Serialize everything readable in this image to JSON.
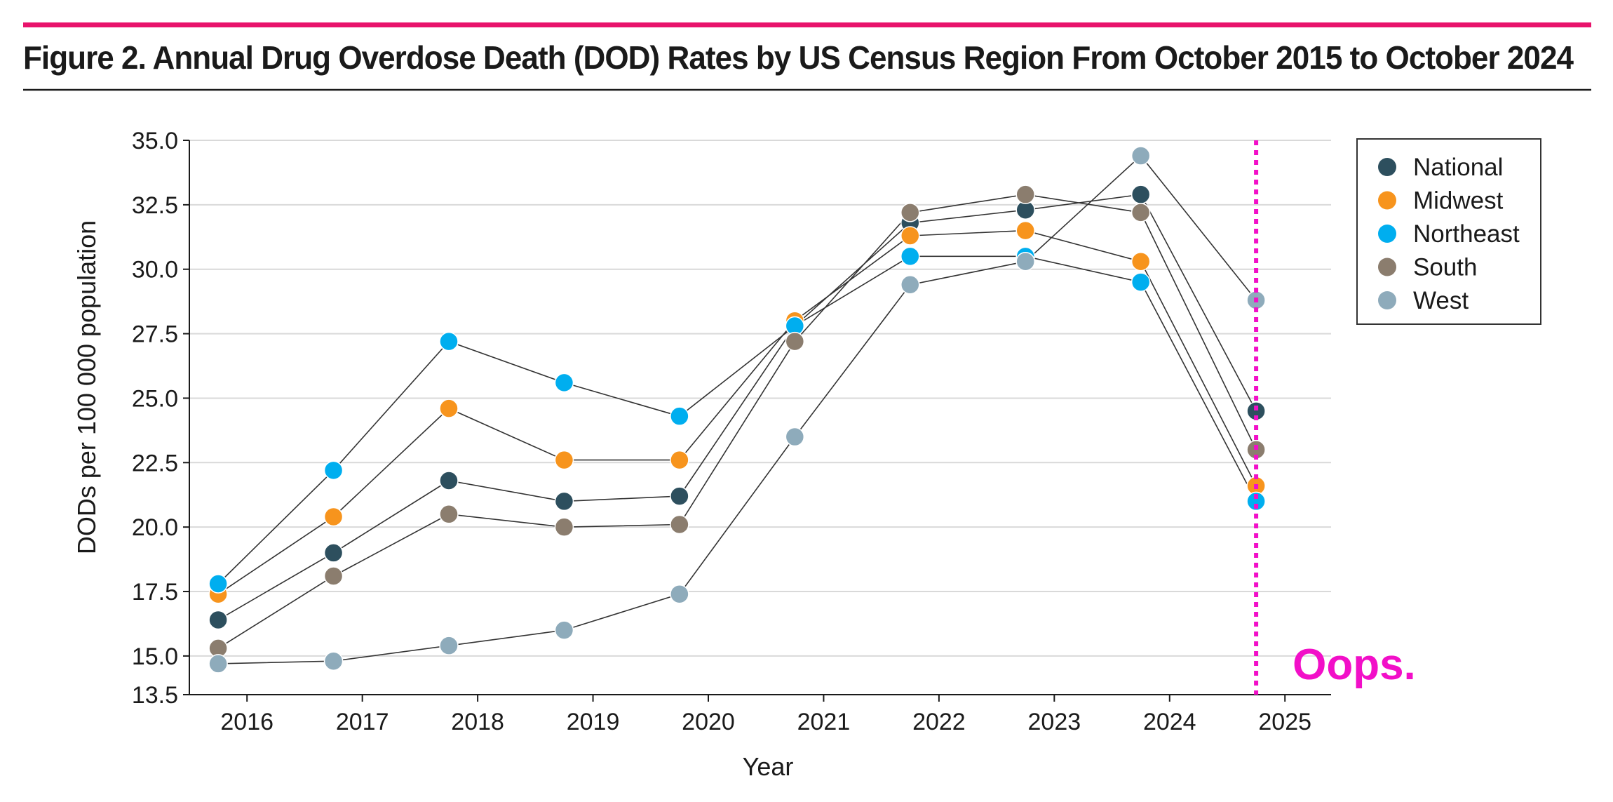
{
  "figure": {
    "title": "Figure 2. Annual Drug Overdose Death (DOD) Rates by US Census Region From October 2015 to October 2024",
    "accent_color": "#e8136b"
  },
  "chart_data": {
    "type": "line",
    "title": "Figure 2. Annual Drug Overdose Death (DOD) Rates by US Census Region From October 2015 to October 2024",
    "xlabel": "Year",
    "ylabel": "DODs per 100 000 population",
    "x": [
      2015.75,
      2016.75,
      2017.75,
      2018.75,
      2019.75,
      2020.75,
      2021.75,
      2022.75,
      2023.75,
      2024.75
    ],
    "xlim": [
      2015.5,
      2025.4
    ],
    "ylim": [
      13.5,
      35.0
    ],
    "x_ticks": [
      2016,
      2017,
      2018,
      2019,
      2020,
      2021,
      2022,
      2023,
      2024,
      2025
    ],
    "x_tick_labels": [
      "2016",
      "2017",
      "2018",
      "2019",
      "2020",
      "2021",
      "2022",
      "2023",
      "2024",
      "2025"
    ],
    "y_ticks": [
      13.5,
      15.0,
      17.5,
      20.0,
      22.5,
      25.0,
      27.5,
      30.0,
      32.5,
      35.0
    ],
    "y_tick_labels": [
      "13.5",
      "15.0",
      "17.5",
      "20.0",
      "22.5",
      "25.0",
      "27.5",
      "30.0",
      "32.5",
      "35.0"
    ],
    "grid": true,
    "legend_position": "top-right",
    "series": [
      {
        "name": "National",
        "color": "#2d4f5e",
        "values": [
          16.4,
          19.0,
          21.8,
          21.0,
          21.2,
          27.8,
          31.8,
          32.3,
          32.9,
          24.5
        ]
      },
      {
        "name": "Midwest",
        "color": "#f7941d",
        "values": [
          17.4,
          20.4,
          24.6,
          22.6,
          22.6,
          28.0,
          31.3,
          31.5,
          30.3,
          21.6
        ]
      },
      {
        "name": "Northeast",
        "color": "#00aeef",
        "values": [
          17.8,
          22.2,
          27.2,
          25.6,
          24.3,
          27.8,
          30.5,
          30.5,
          29.5,
          21.0
        ]
      },
      {
        "name": "South",
        "color": "#8b7d6e",
        "values": [
          15.3,
          18.1,
          20.5,
          20.0,
          20.1,
          27.2,
          32.2,
          32.9,
          32.2,
          23.0
        ]
      },
      {
        "name": "West",
        "color": "#8eabbb",
        "values": [
          14.7,
          14.8,
          15.4,
          16.0,
          17.4,
          23.5,
          29.4,
          30.3,
          34.4,
          28.8
        ]
      }
    ],
    "annotations": [
      {
        "type": "vertical-dotted-line",
        "x": 2024.75,
        "color": "#f20fc8"
      },
      {
        "type": "text",
        "text": "Oops.",
        "color": "#f20fc8"
      }
    ]
  }
}
